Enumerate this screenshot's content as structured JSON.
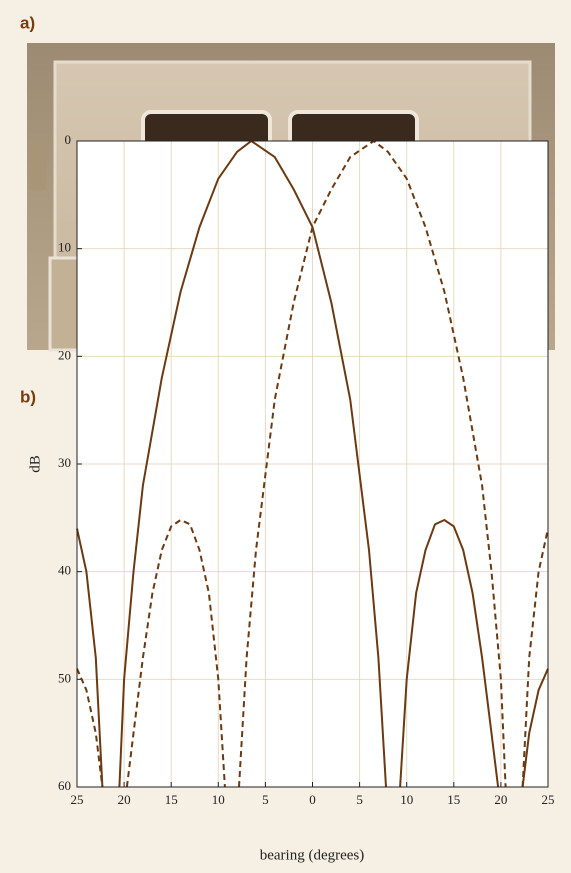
{
  "panel_a": {
    "label": "a)"
  },
  "chart_data": {
    "type": "line",
    "panel_label": "b)",
    "xlabel": "bearing (degrees)",
    "ylabel": "dB",
    "xlim": [
      -25,
      25
    ],
    "ylim": [
      60,
      0
    ],
    "xticks": [
      {
        "value": -25,
        "label": "25"
      },
      {
        "value": -20,
        "label": "20"
      },
      {
        "value": -15,
        "label": "15"
      },
      {
        "value": -10,
        "label": "10"
      },
      {
        "value": -5,
        "label": "5"
      },
      0,
      5,
      10,
      15,
      20,
      25
    ],
    "yticks": [
      0,
      10,
      20,
      30,
      40,
      50,
      60
    ],
    "grid": true,
    "series": [
      {
        "color": "#6b3a12",
        "line_style": "solid",
        "x": [
          -25,
          -24,
          -23,
          -22.3,
          null,
          -20.5,
          -20,
          -19,
          -18,
          -16,
          -14,
          -12,
          -10,
          -8,
          -6.5,
          -4,
          -2,
          0,
          2,
          4,
          6,
          7,
          7.8,
          null,
          9.3,
          10,
          11,
          12,
          13,
          14,
          15,
          16,
          17,
          18,
          19,
          19.7,
          null,
          22.3,
          23,
          24,
          25
        ],
        "values": [
          36,
          40,
          48,
          60,
          null,
          60,
          50,
          40,
          32,
          22,
          14,
          8,
          3.5,
          1,
          0,
          1.5,
          4.5,
          8,
          15,
          24,
          38,
          48,
          60,
          null,
          60,
          50,
          42,
          38,
          35.6,
          35.2,
          35.8,
          38,
          42,
          48,
          55,
          60,
          null,
          60,
          55,
          51,
          49
        ]
      },
      {
        "color": "#6b3a12",
        "line_style": "dashed",
        "x": [
          -25,
          -24,
          -23,
          -22.3,
          null,
          -19.7,
          -19,
          -18,
          -17,
          -16,
          -15,
          -14,
          -13,
          -12,
          -11,
          -10,
          -9.3,
          null,
          -7.8,
          -7,
          -6,
          -4,
          -2,
          0,
          2,
          4,
          6.5,
          8,
          10,
          12,
          14,
          16,
          18,
          19,
          20,
          20.5,
          null,
          22.3,
          23,
          24,
          25
        ],
        "values": [
          49,
          51,
          55,
          60,
          null,
          60,
          55,
          48,
          42,
          38,
          35.8,
          35.2,
          35.6,
          38,
          42,
          50,
          60,
          null,
          60,
          48,
          38,
          24,
          15,
          8,
          4.5,
          1.5,
          0,
          1,
          3.5,
          8,
          14,
          22,
          32,
          40,
          50,
          60,
          null,
          60,
          48,
          40,
          36
        ]
      }
    ]
  }
}
